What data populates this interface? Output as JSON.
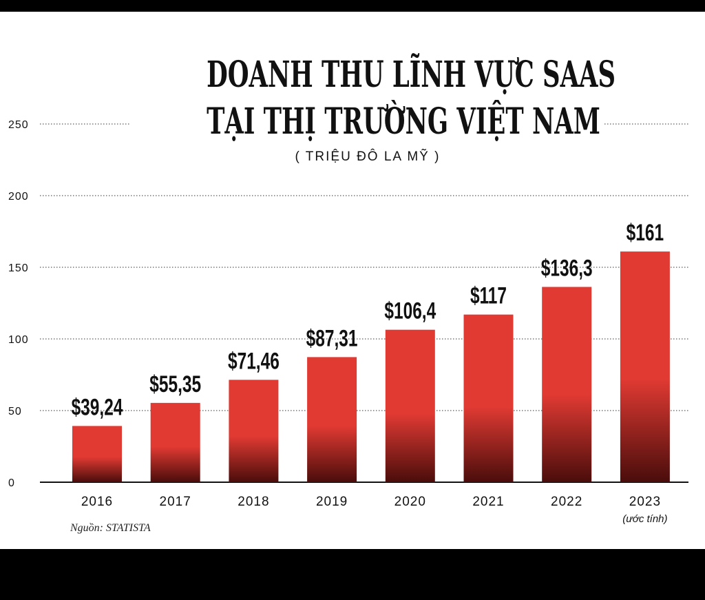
{
  "chart_data": {
    "type": "bar",
    "title_lines": [
      "DOANH THU LĨNH VỰC SAAS",
      "TẠI THỊ TRƯỜNG VIỆT NAM"
    ],
    "subtitle": "( TRIỆU ĐÔ LA MỸ )",
    "categories": [
      "2016",
      "2017",
      "2018",
      "2019",
      "2020",
      "2021",
      "2022",
      "2023"
    ],
    "category_notes": [
      "",
      "",
      "",
      "",
      "",
      "",
      "",
      "(ước tính)"
    ],
    "values": [
      39.24,
      55.35,
      71.46,
      87.31,
      106.4,
      117,
      136.3,
      161
    ],
    "value_labels": [
      "$39,24",
      "$55,35",
      "$71,46",
      "$87,31",
      "$106,4",
      "$117",
      "$136,3",
      "$161"
    ],
    "yticks": [
      0,
      50,
      100,
      150,
      200,
      250
    ],
    "ylim": [
      0,
      250
    ],
    "grid": true,
    "grid_style": "dotted",
    "bar_color_top": "#e13a33",
    "bar_color_bottom": "#4a0d0b",
    "source": "Nguồn: STATISTA"
  }
}
